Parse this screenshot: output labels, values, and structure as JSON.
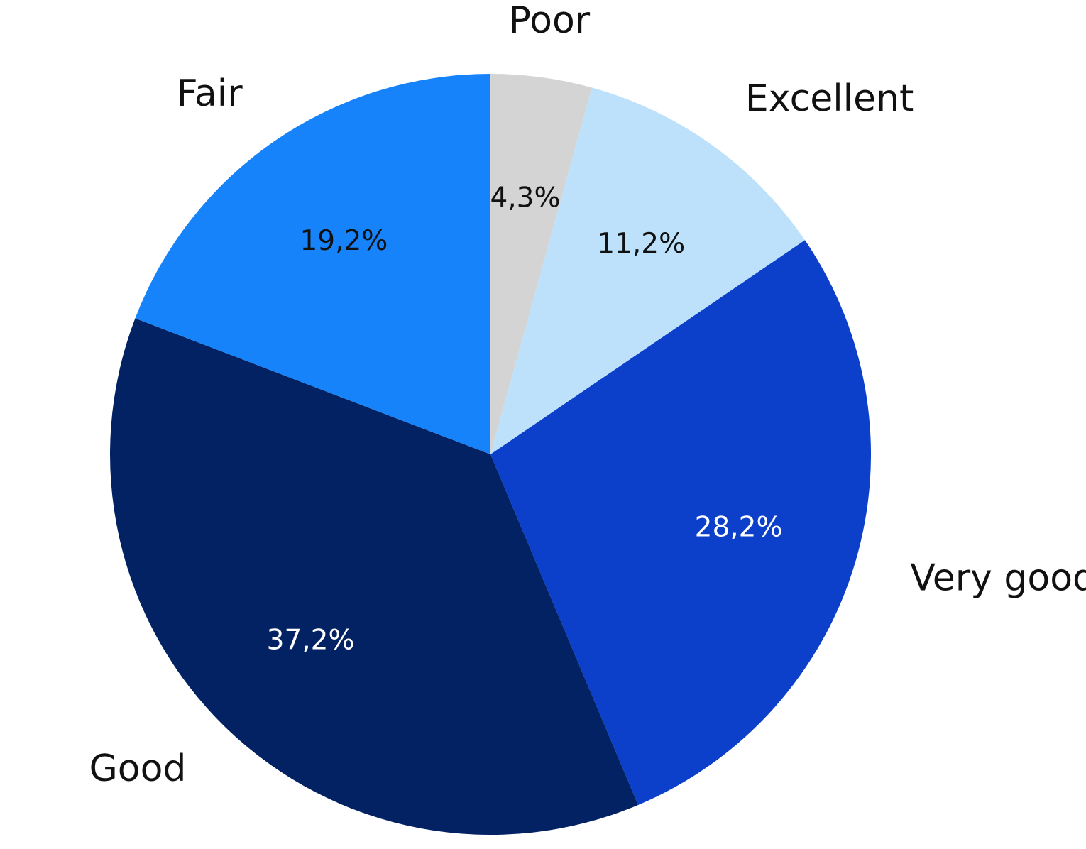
{
  "chart_data": {
    "type": "pie",
    "title": "",
    "unit": "%",
    "slices": [
      {
        "label": "Poor",
        "value": 4.3,
        "value_label": "4,3%",
        "color": "#d4d4d4",
        "value_text_color": "#111111"
      },
      {
        "label": "Excellent",
        "value": 11.2,
        "value_label": "11,2%",
        "color": "#bde1fb",
        "value_text_color": "#111111"
      },
      {
        "label": "Very good",
        "value": 28.2,
        "value_label": "28,2%",
        "color": "#0c40cb",
        "value_text_color": "#ffffff"
      },
      {
        "label": "Good",
        "value": 37.2,
        "value_label": "37,2%",
        "color": "#032263",
        "value_text_color": "#ffffff"
      },
      {
        "label": "Fair",
        "value": 19.2,
        "value_label": "19,2%",
        "color": "#1683fb",
        "value_text_color": "#111111"
      }
    ],
    "start": "top",
    "direction": "clockwise",
    "legend": "none"
  }
}
